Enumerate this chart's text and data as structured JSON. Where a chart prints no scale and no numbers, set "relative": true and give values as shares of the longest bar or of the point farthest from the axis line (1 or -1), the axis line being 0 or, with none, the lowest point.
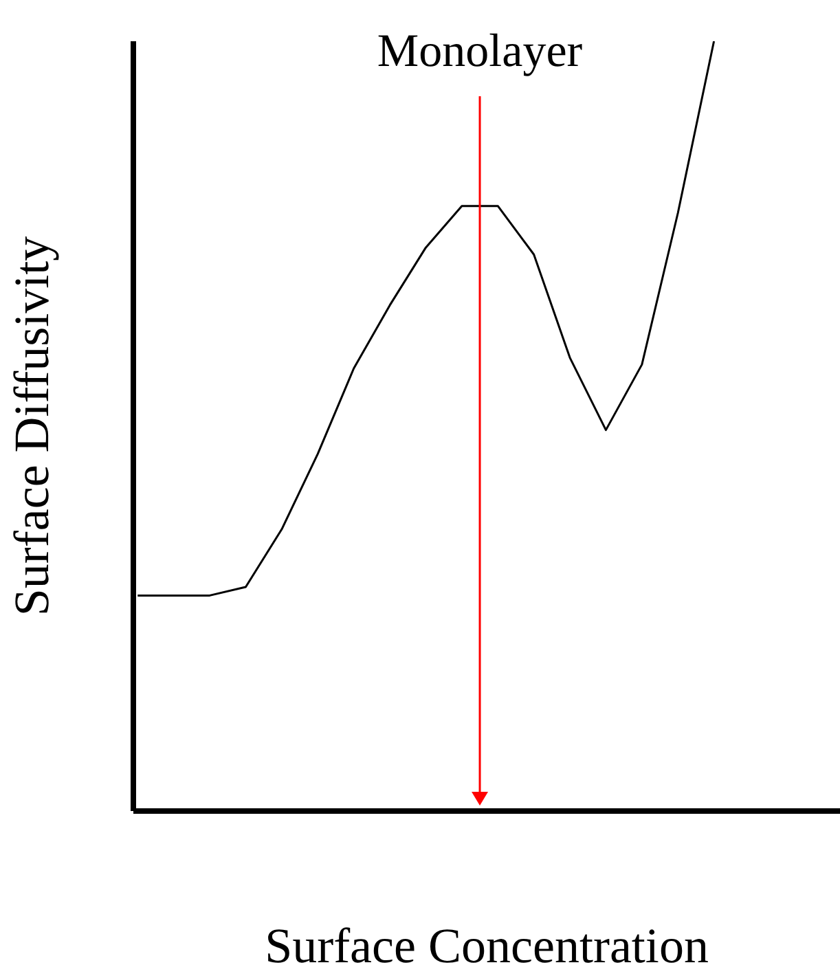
{
  "chart_data": {
    "type": "line",
    "relative": true,
    "xlabel": "Surface Concentration",
    "ylabel": "Surface Diffusivity",
    "annotations": [
      "Monolayer"
    ],
    "categories": [
      null,
      null,
      null,
      null,
      null,
      null,
      null,
      null,
      null,
      null,
      null,
      null,
      null,
      null,
      null,
      null,
      null,
      null,
      null,
      null
    ],
    "series": [
      {
        "color": "#000000",
        "values": [
          0.28,
          0.28,
          0.28,
          0.291,
          0.366,
          0.464,
          0.575,
          0.657,
          0.732,
          0.786,
          0.786,
          0.723,
          0.589,
          0.495,
          0.58,
          0.777,
          1.0,
          null,
          null,
          null
        ]
      }
    ],
    "grid": false,
    "legend": false,
    "marker": "none",
    "line_style": "solid"
  }
}
